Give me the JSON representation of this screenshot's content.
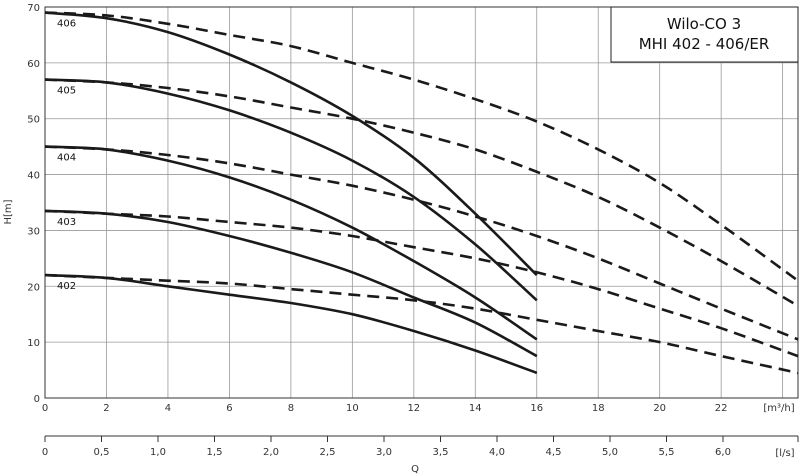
{
  "chart_data": {
    "type": "line",
    "title_lines": [
      "Wilo-CO 3",
      "MHI 402 - 406/ER"
    ],
    "ylabel": "H[m]",
    "xlabel": "Q",
    "x_unit_top": "[m³/h]",
    "x_unit_bottom": "[l/s]",
    "xlim": [
      0,
      24.5
    ],
    "ylim": [
      0,
      70
    ],
    "grid": true,
    "x_ticks": [
      0,
      2,
      4,
      6,
      8,
      10,
      12,
      14,
      16,
      18,
      20,
      22
    ],
    "y_ticks": [
      0,
      10,
      20,
      30,
      40,
      50,
      60,
      70
    ],
    "x2_ticks": [
      "0",
      "0,5",
      "1,0",
      "1,5",
      "2,0",
      "2,5",
      "3,0",
      "3,5",
      "4,0",
      "4,5",
      "5,0",
      "5,5",
      "6,0"
    ],
    "series": [
      {
        "name": "406",
        "style": "solid",
        "x": [
          0,
          2,
          4,
          6,
          8,
          10,
          12,
          14,
          16
        ],
        "y": [
          69,
          68,
          65.5,
          61.5,
          56.5,
          50.5,
          43,
          33,
          22
        ]
      },
      {
        "name": "406",
        "style": "dashed",
        "x": [
          0,
          2,
          4,
          6,
          8,
          10,
          12,
          14,
          16,
          18,
          20,
          22,
          24.5
        ],
        "y": [
          69,
          68.5,
          67,
          65,
          63,
          60,
          57,
          53.5,
          49.5,
          44.5,
          38.5,
          31,
          21
        ]
      },
      {
        "name": "405",
        "style": "solid",
        "x": [
          0,
          2,
          4,
          6,
          8,
          10,
          12,
          14,
          16
        ],
        "y": [
          57,
          56.5,
          54.5,
          51.5,
          47.5,
          42.5,
          36,
          27.5,
          17.5
        ]
      },
      {
        "name": "405",
        "style": "dashed",
        "x": [
          0,
          2,
          4,
          6,
          8,
          10,
          12,
          14,
          16,
          18,
          20,
          22,
          24.5
        ],
        "y": [
          57,
          56.5,
          55.5,
          54,
          52,
          50,
          47.5,
          44.5,
          40.5,
          36,
          30.5,
          24.5,
          16.5
        ]
      },
      {
        "name": "404",
        "style": "solid",
        "x": [
          0,
          2,
          4,
          6,
          8,
          10,
          12,
          14,
          16
        ],
        "y": [
          45,
          44.5,
          42.5,
          39.5,
          35.5,
          30.5,
          24.5,
          18,
          10.5
        ]
      },
      {
        "name": "404",
        "style": "dashed",
        "x": [
          0,
          2,
          4,
          6,
          8,
          10,
          12,
          14,
          16,
          18,
          20,
          22,
          24.5
        ],
        "y": [
          45,
          44.5,
          43.5,
          42,
          40,
          38,
          35.5,
          32.5,
          29,
          25,
          20.5,
          16,
          10.5
        ]
      },
      {
        "name": "403",
        "style": "solid",
        "x": [
          0,
          2,
          4,
          6,
          8,
          10,
          12,
          14,
          16
        ],
        "y": [
          33.5,
          33,
          31.5,
          29,
          26,
          22.5,
          18,
          13.5,
          7.5
        ]
      },
      {
        "name": "403",
        "style": "dashed",
        "x": [
          0,
          2,
          4,
          6,
          8,
          10,
          12,
          14,
          16,
          18,
          20,
          22,
          24.5
        ],
        "y": [
          33.5,
          33,
          32.5,
          31.5,
          30.5,
          29,
          27,
          25,
          22.5,
          19.5,
          16,
          12.5,
          7.5
        ]
      },
      {
        "name": "402",
        "style": "solid",
        "x": [
          0,
          2,
          4,
          6,
          8,
          10,
          12,
          14,
          16
        ],
        "y": [
          22,
          21.5,
          20,
          18.5,
          17,
          15,
          12,
          8.5,
          4.5
        ]
      },
      {
        "name": "402",
        "style": "dashed",
        "x": [
          0,
          2,
          4,
          6,
          8,
          10,
          12,
          14,
          16,
          18,
          20,
          22,
          24.5
        ],
        "y": [
          22,
          21.5,
          21,
          20.5,
          19.5,
          18.5,
          17.5,
          16,
          14,
          12,
          10,
          7.5,
          4.5
        ]
      }
    ]
  }
}
